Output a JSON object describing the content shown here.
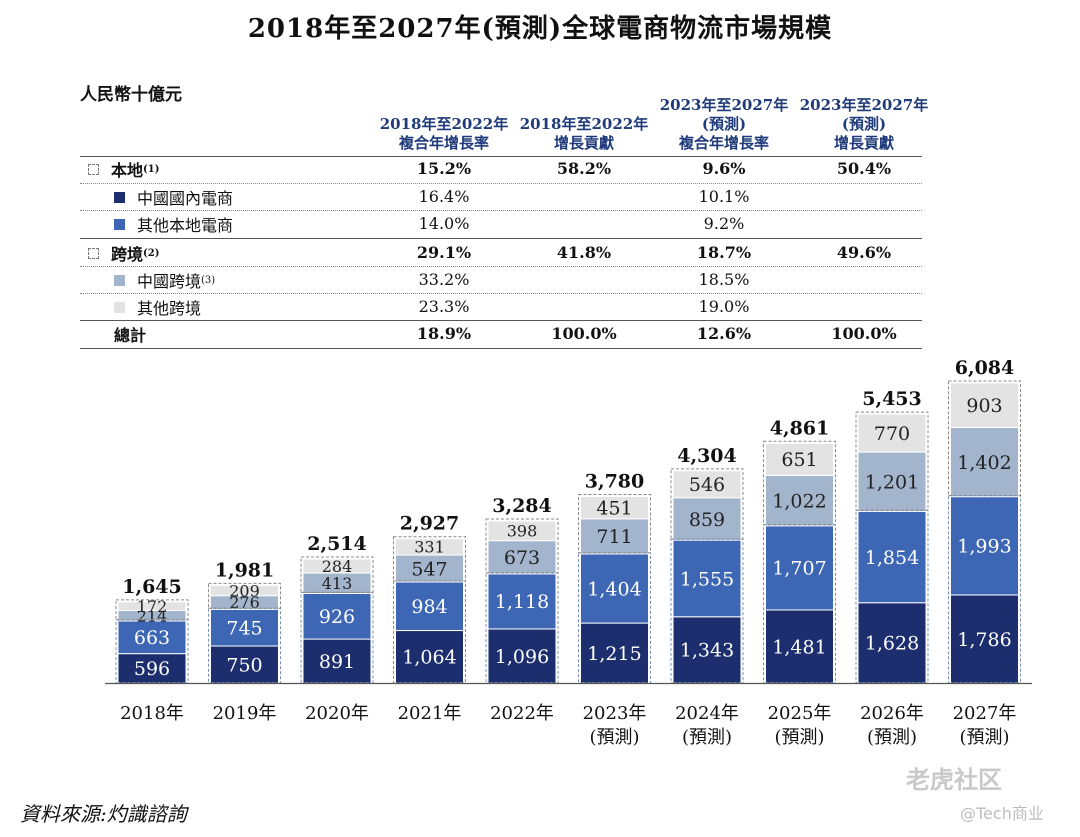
{
  "title": "2018年至2027年(預測)全球電商物流市場規模",
  "table": {
    "unit": "人民幣十億元",
    "headers": [
      "2018年至2022年\n複合年增長率",
      "2018年至2022年\n增長貢獻",
      "2023年至2027年\n(預測)\n複合年增長率",
      "2023年至2027年\n(預測)\n增長貢獻"
    ],
    "rows": [
      {
        "label": "本地",
        "note": "(1)",
        "bold": true,
        "swatch": "dash",
        "values": [
          "15.2%",
          "58.2%",
          "9.6%",
          "50.4%"
        ]
      },
      {
        "label": "中國國內電商",
        "note": "",
        "bold": false,
        "swatch": "#1d2e6e",
        "values": [
          "16.4%",
          "",
          "10.1%",
          ""
        ]
      },
      {
        "label": "其他本地電商",
        "note": "",
        "bold": false,
        "swatch": "#3d66b4",
        "values": [
          "14.0%",
          "",
          "9.2%",
          ""
        ]
      },
      {
        "label": "跨境",
        "note": "(2)",
        "bold": true,
        "swatch": "dash",
        "values": [
          "29.1%",
          "41.8%",
          "18.7%",
          "49.6%"
        ]
      },
      {
        "label": "中國跨境",
        "note": "(3)",
        "bold": false,
        "swatch": "#a3b4cd",
        "values": [
          "33.2%",
          "",
          "18.5%",
          ""
        ]
      },
      {
        "label": "其他跨境",
        "note": "",
        "bold": false,
        "swatch": "#e3e3e3",
        "values": [
          "23.3%",
          "",
          "19.0%",
          ""
        ]
      },
      {
        "label": "總計",
        "note": "",
        "bold": true,
        "swatch": "none",
        "values": [
          "18.9%",
          "100.0%",
          "12.6%",
          "100.0%"
        ]
      }
    ]
  },
  "chart_data": {
    "type": "bar",
    "stacked": true,
    "categories": [
      "2018年",
      "2019年",
      "2020年",
      "2021年",
      "2022年",
      "2023年\n(預測)",
      "2024年\n(預測)",
      "2025年\n(預測)",
      "2026年\n(預測)",
      "2027年\n(預測)"
    ],
    "series": [
      {
        "name": "中國國內電商",
        "color": "#1d2e6e",
        "values": [
          596,
          750,
          891,
          1064,
          1096,
          1215,
          1343,
          1481,
          1628,
          1786
        ]
      },
      {
        "name": "其他本地電商",
        "color": "#3d66b4",
        "values": [
          663,
          745,
          926,
          984,
          1118,
          1404,
          1555,
          1707,
          1854,
          1993
        ]
      },
      {
        "name": "中國跨境",
        "color": "#a3b4cd",
        "values": [
          214,
          276,
          413,
          547,
          673,
          711,
          859,
          1022,
          1201,
          1402
        ]
      },
      {
        "name": "其他跨境",
        "color": "#e3e3e3",
        "values": [
          172,
          209,
          284,
          331,
          398,
          451,
          546,
          651,
          770,
          903
        ]
      }
    ],
    "totals": [
      "1,645",
      "1,981",
      "2,514",
      "2,927",
      "3,284",
      "3,780",
      "4,304",
      "4,861",
      "5,453",
      "6,084"
    ],
    "ylim": [
      0,
      6084
    ]
  },
  "source": "資料來源:灼識諮詢",
  "watermark": {
    "main": "老虎社区",
    "sub": "@Tech商业"
  }
}
